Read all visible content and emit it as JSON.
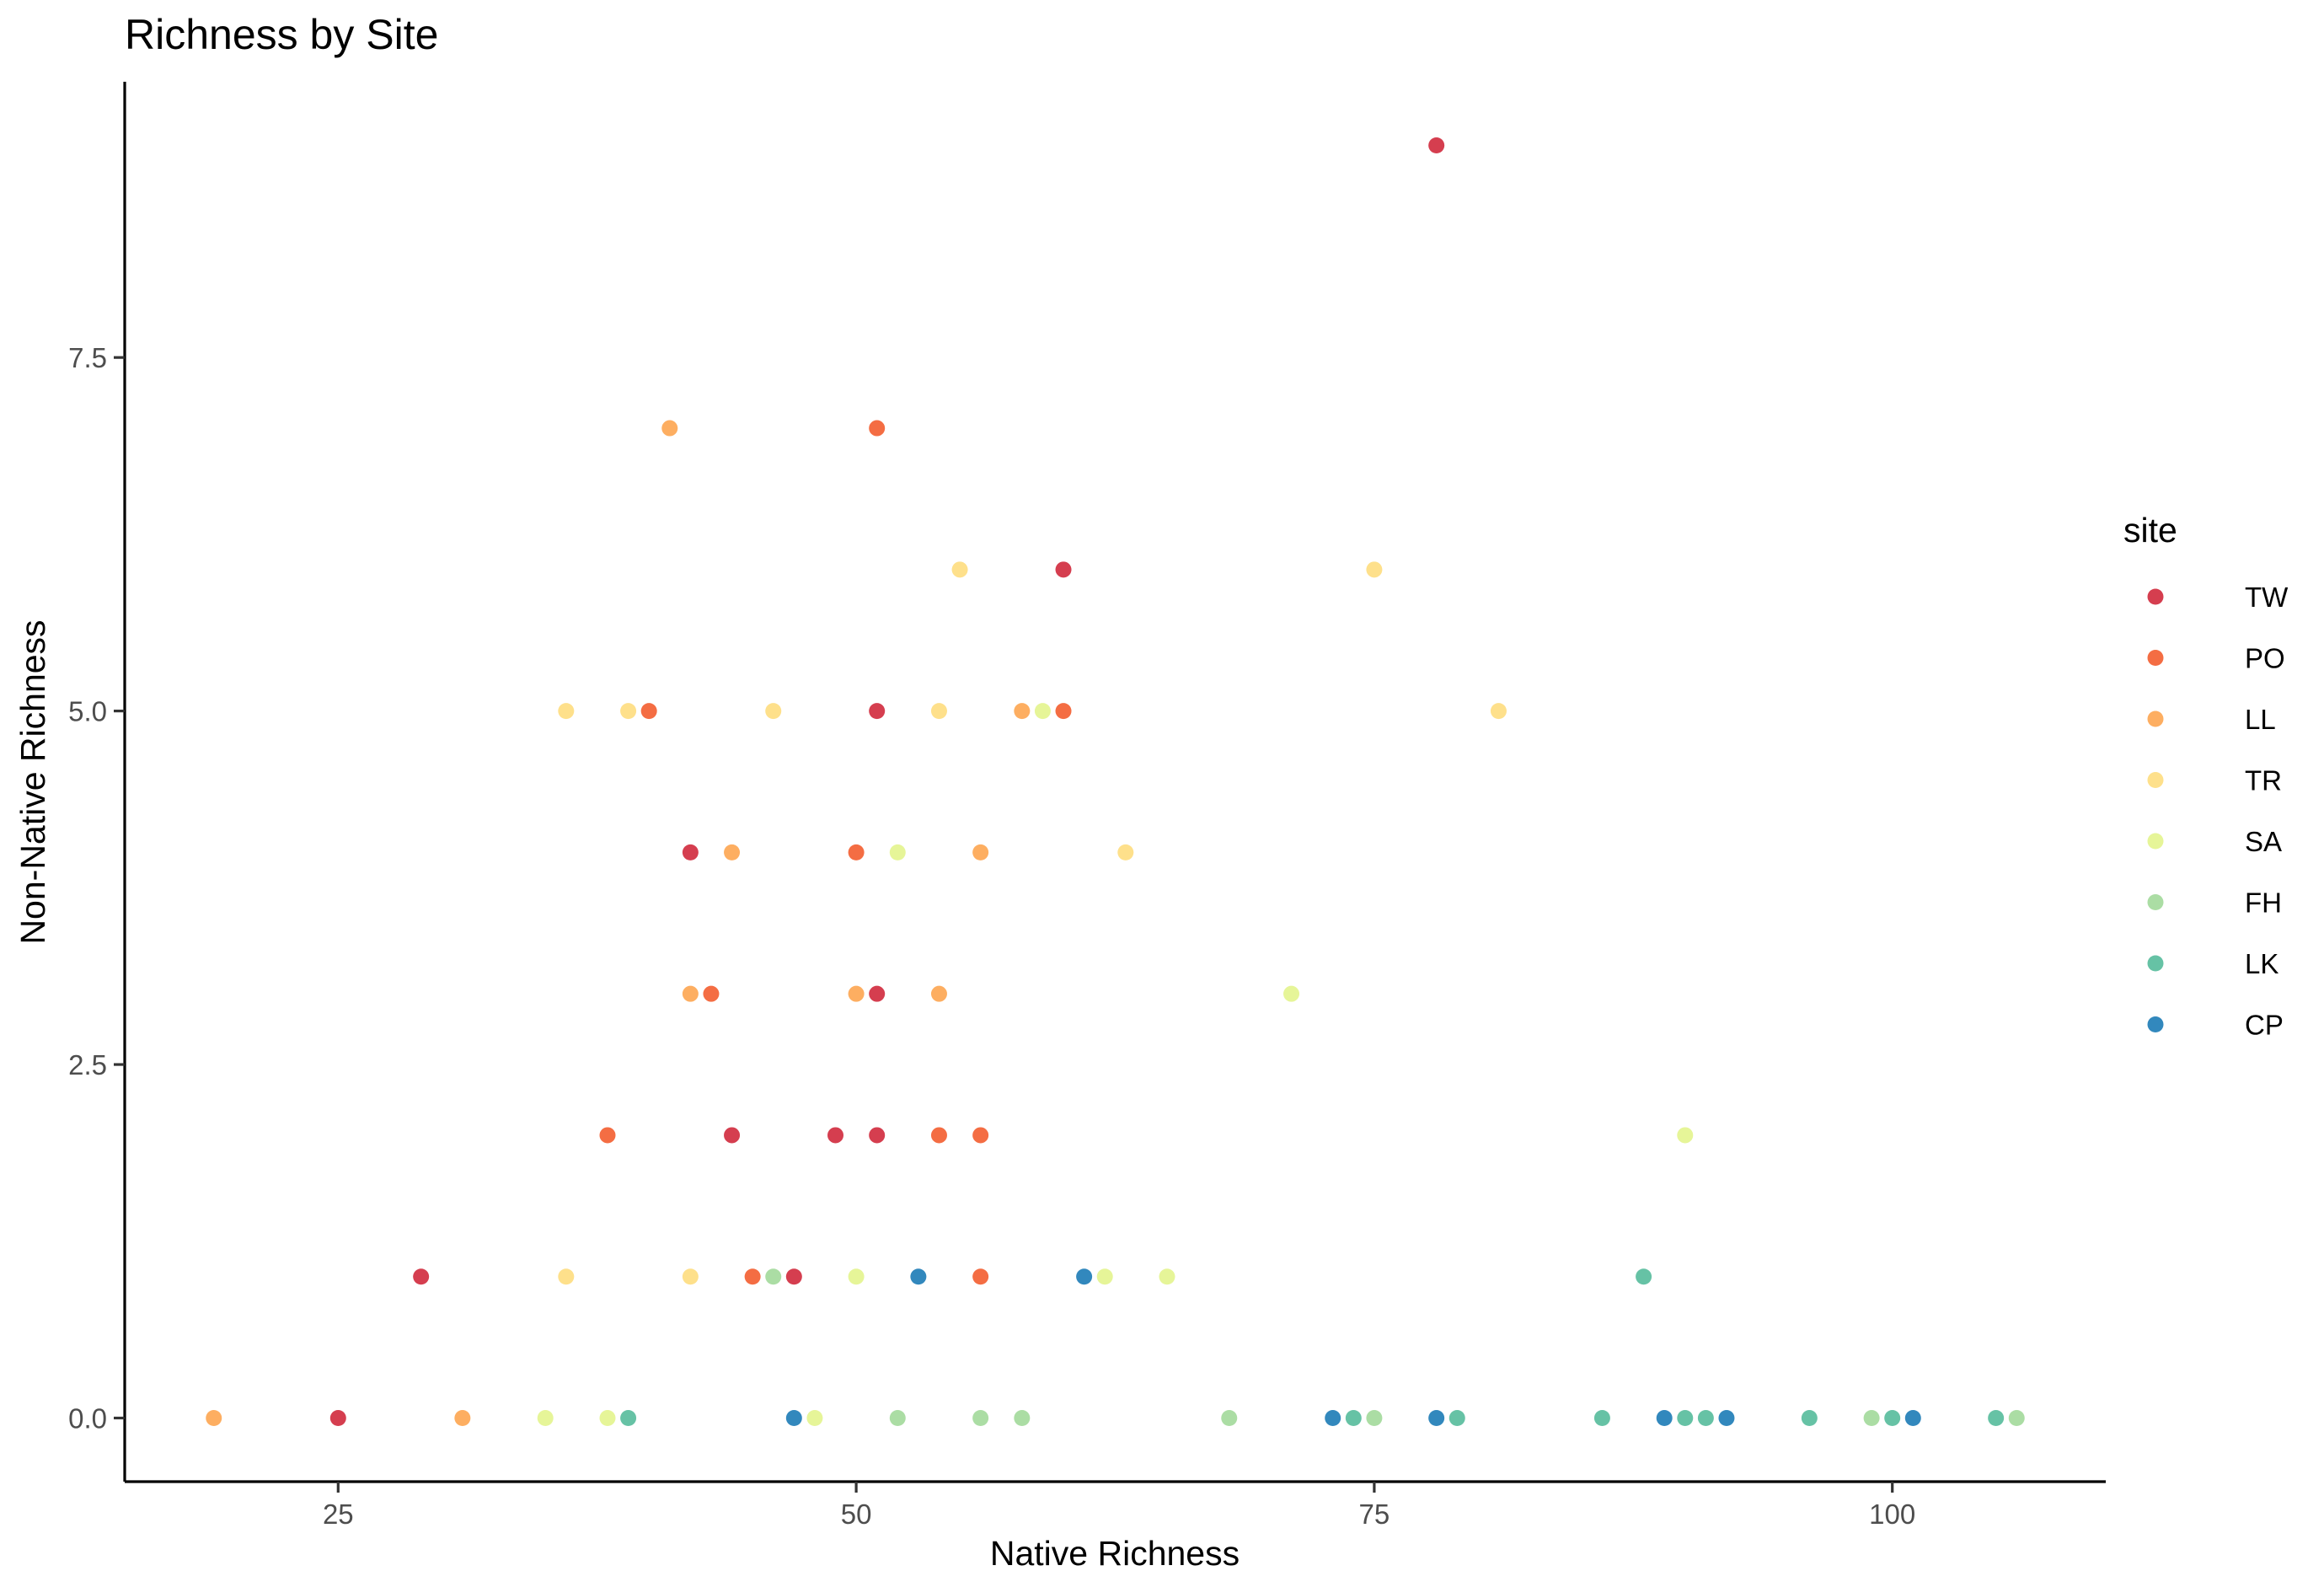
{
  "chart_data": {
    "type": "scatter",
    "title": "Richness by Site",
    "xlabel": "Native Richness",
    "ylabel": "Non-Native Richness",
    "xlim": [
      14.7,
      110.3
    ],
    "ylim": [
      -0.45,
      9.45
    ],
    "xticks": [
      25,
      50,
      75,
      100
    ],
    "xtick_labels": [
      "25",
      "50",
      "75",
      "100"
    ],
    "yticks": [
      0,
      2.5,
      5,
      7.5
    ],
    "ytick_labels": [
      "0.0",
      "2.5",
      "5.0",
      "7.5"
    ],
    "grid": false,
    "legend": {
      "title": "site",
      "placement": "right"
    },
    "series": [
      {
        "name": "TW",
        "color": "#D53E4F",
        "points": [
          [
            78,
            9
          ],
          [
            60,
            6
          ],
          [
            51,
            5
          ],
          [
            42,
            4
          ],
          [
            51,
            3
          ],
          [
            44,
            2
          ],
          [
            49,
            2
          ],
          [
            51,
            2
          ],
          [
            29,
            1
          ],
          [
            47,
            1
          ],
          [
            25,
            0
          ]
        ]
      },
      {
        "name": "PO",
        "color": "#F46D43",
        "points": [
          [
            51,
            7
          ],
          [
            40,
            5
          ],
          [
            60,
            5
          ],
          [
            50,
            4
          ],
          [
            43,
            3
          ],
          [
            38,
            2
          ],
          [
            54,
            2
          ],
          [
            56,
            2
          ],
          [
            45,
            1
          ],
          [
            56,
            1
          ]
        ]
      },
      {
        "name": "LL",
        "color": "#FDAE61",
        "points": [
          [
            41,
            7
          ],
          [
            58,
            5
          ],
          [
            44,
            4
          ],
          [
            56,
            4
          ],
          [
            42,
            3
          ],
          [
            50,
            3
          ],
          [
            54,
            3
          ],
          [
            19,
            0
          ],
          [
            31,
            0
          ]
        ]
      },
      {
        "name": "TR",
        "color": "#FEE08B",
        "points": [
          [
            55,
            6
          ],
          [
            75,
            6
          ],
          [
            36,
            5
          ],
          [
            39,
            5
          ],
          [
            46,
            5
          ],
          [
            54,
            5
          ],
          [
            81,
            5
          ],
          [
            63,
            4
          ],
          [
            36,
            1
          ],
          [
            42,
            1
          ]
        ]
      },
      {
        "name": "SA",
        "color": "#E6F598",
        "points": [
          [
            59,
            5
          ],
          [
            52,
            4
          ],
          [
            71,
            3
          ],
          [
            90,
            2
          ],
          [
            50,
            1
          ],
          [
            62,
            1
          ],
          [
            65,
            1
          ],
          [
            35,
            0
          ],
          [
            38,
            0
          ],
          [
            48,
            0
          ]
        ]
      },
      {
        "name": "FH",
        "color": "#ABDDA4",
        "points": [
          [
            46,
            1
          ],
          [
            52,
            0
          ],
          [
            56,
            0
          ],
          [
            58,
            0
          ],
          [
            68,
            0
          ],
          [
            75,
            0
          ],
          [
            99,
            0
          ],
          [
            106,
            0
          ]
        ]
      },
      {
        "name": "LK",
        "color": "#66C2A5",
        "points": [
          [
            88,
            1
          ],
          [
            39,
            0
          ],
          [
            74,
            0
          ],
          [
            79,
            0
          ],
          [
            86,
            0
          ],
          [
            90,
            0
          ],
          [
            91,
            0
          ],
          [
            96,
            0
          ],
          [
            100,
            0
          ],
          [
            105,
            0
          ]
        ]
      },
      {
        "name": "CP",
        "color": "#3288BD",
        "points": [
          [
            53,
            1
          ],
          [
            61,
            1
          ],
          [
            47,
            0
          ],
          [
            73,
            0
          ],
          [
            78,
            0
          ],
          [
            89,
            0
          ],
          [
            92,
            0
          ],
          [
            101,
            0
          ]
        ]
      }
    ]
  }
}
